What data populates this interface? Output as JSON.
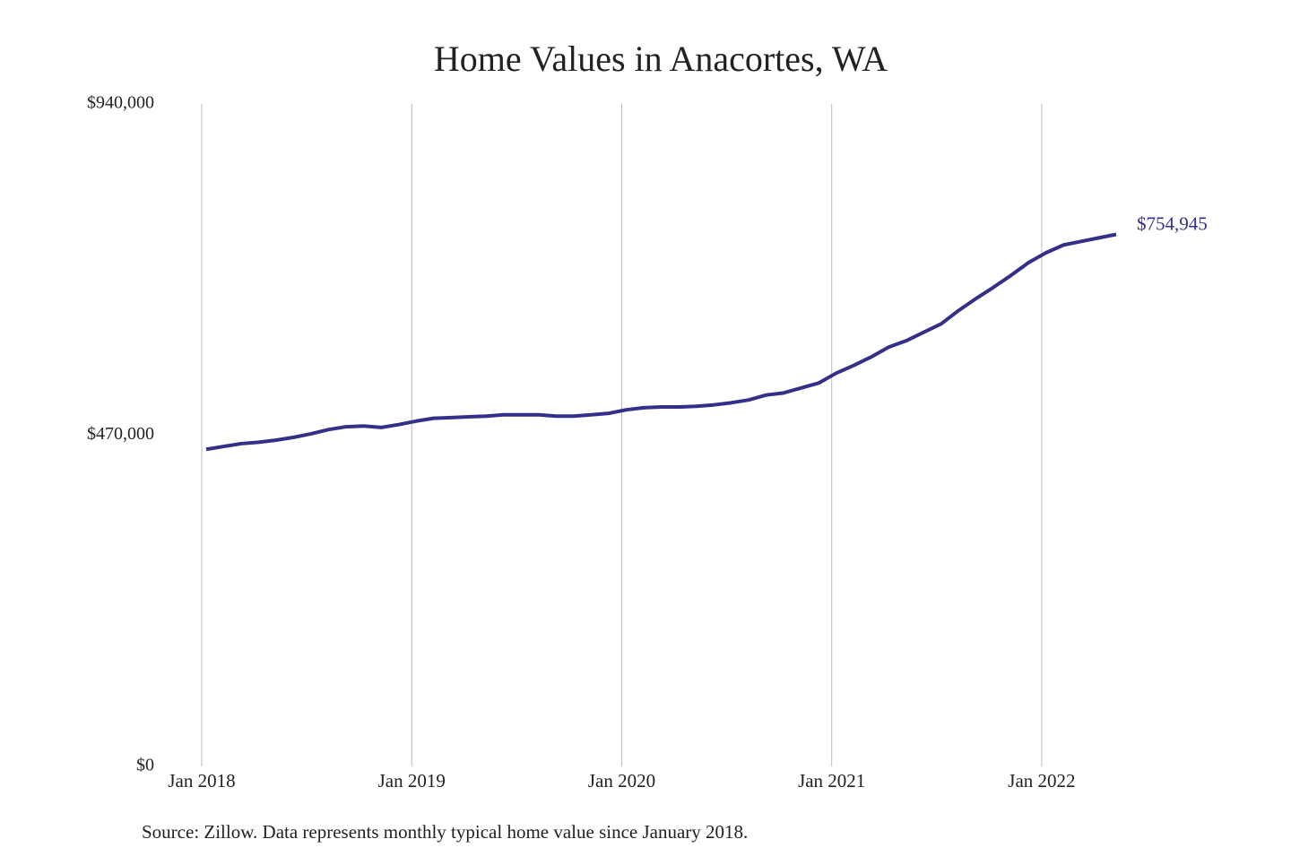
{
  "chart_data": {
    "type": "line",
    "title": "Home Values in Anacortes, WA",
    "source": "Source: Zillow. Data represents monthly typical home value since January 2018.",
    "categories": [
      "Jan 2018",
      null,
      null,
      null,
      null,
      null,
      null,
      null,
      null,
      null,
      null,
      null,
      "Jan 2019",
      null,
      null,
      null,
      null,
      null,
      null,
      null,
      null,
      null,
      null,
      null,
      "Jan 2020",
      null,
      null,
      null,
      null,
      null,
      null,
      null,
      null,
      null,
      null,
      null,
      "Jan 2021",
      null,
      null,
      null,
      null,
      null,
      null,
      null,
      null,
      null,
      null,
      null,
      "Jan 2022",
      null,
      null,
      null,
      null
    ],
    "series": [
      {
        "name": "Anacortes, WA",
        "color": "#34308a",
        "values": [
          450000,
          454000,
          458000,
          460000,
          463000,
          467000,
          472000,
          478000,
          482000,
          483000,
          481000,
          485000,
          490000,
          494000,
          495000,
          496000,
          497000,
          499000,
          499000,
          499000,
          497000,
          497000,
          499000,
          501000,
          506000,
          509000,
          510000,
          510000,
          511000,
          513000,
          516000,
          520000,
          527000,
          530000,
          537000,
          544000,
          558000,
          569000,
          581000,
          595000,
          604000,
          616000,
          628000,
          647000,
          664000,
          680000,
          697000,
          715000,
          729000,
          740000,
          745000,
          750000,
          754945
        ],
        "value_labels": {
          "52": "$754,945"
        }
      }
    ],
    "ylim": [
      0,
      940000
    ],
    "yticks": [
      {
        "value": 0,
        "label": "$0"
      },
      {
        "value": 470000,
        "label": "$470,000"
      },
      {
        "value": 940000,
        "label": "$940,000"
      }
    ],
    "grid": "x"
  }
}
